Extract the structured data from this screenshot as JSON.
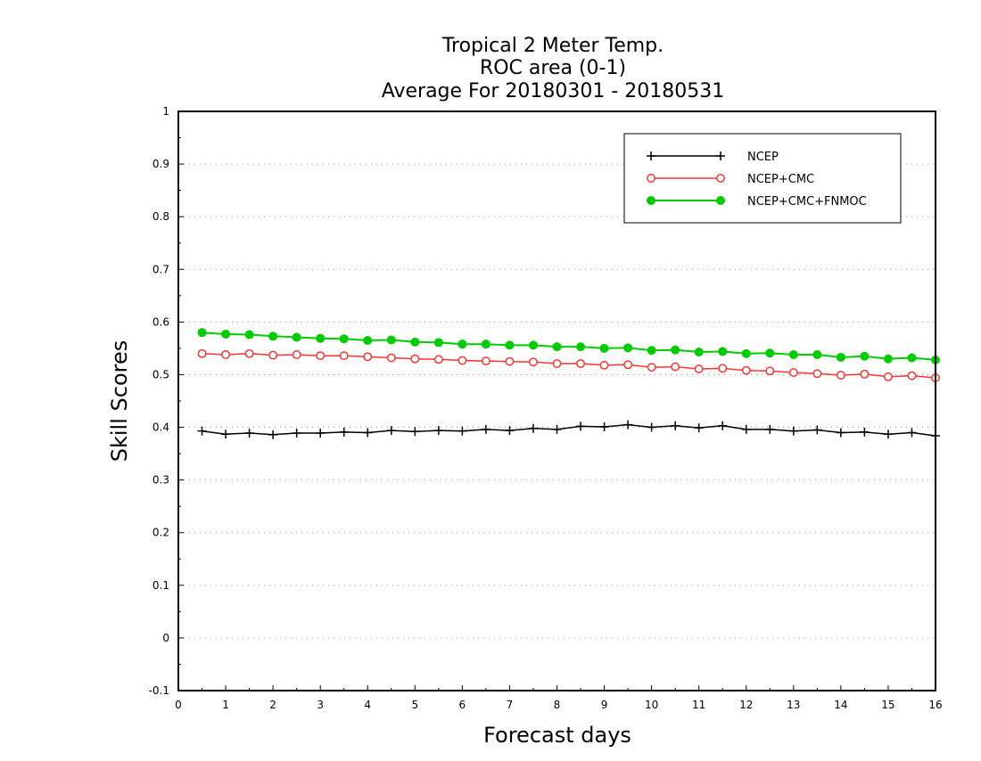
{
  "chart_data": {
    "type": "line",
    "title_lines": [
      "Tropical 2 Meter Temp.",
      "ROC area (0-1)",
      "Average For 20180301 - 20180531"
    ],
    "xlabel": "Forecast days",
    "ylabel": "Skill Scores",
    "xlim": [
      0,
      16
    ],
    "ylim": [
      -0.1,
      1
    ],
    "x_ticks": [
      0,
      1,
      2,
      3,
      4,
      5,
      6,
      7,
      8,
      9,
      10,
      11,
      12,
      13,
      14,
      15,
      16
    ],
    "x_tick_labels": [
      "0",
      "1",
      "2",
      "3",
      "4",
      "5",
      "6",
      "7",
      "8",
      "9",
      "10",
      "11",
      "12",
      "13",
      "14",
      "15",
      "16"
    ],
    "y_ticks": [
      -0.1,
      0,
      0.1,
      0.2,
      0.3,
      0.4,
      0.5,
      0.6,
      0.7,
      0.8,
      0.9,
      1
    ],
    "y_tick_labels": [
      "-0.1",
      "0",
      "0.1",
      "0.2",
      "0.3",
      "0.4",
      "0.5",
      "0.6",
      "0.7",
      "0.8",
      "0.9",
      "1"
    ],
    "grid": "horizontal dotted",
    "legend_position": "top-right",
    "x": [
      0.5,
      1,
      1.5,
      2,
      2.5,
      3,
      3.5,
      4,
      4.5,
      5,
      5.5,
      6,
      6.5,
      7,
      7.5,
      8,
      8.5,
      9,
      9.5,
      10,
      10.5,
      11,
      11.5,
      12,
      12.5,
      13,
      13.5,
      14,
      14.5,
      15,
      15.5,
      16
    ],
    "series": [
      {
        "name": "NCEP",
        "color": "#000000",
        "marker": "plus",
        "values": [
          0.393,
          0.387,
          0.389,
          0.386,
          0.389,
          0.389,
          0.391,
          0.39,
          0.394,
          0.392,
          0.394,
          0.393,
          0.396,
          0.394,
          0.398,
          0.396,
          0.402,
          0.401,
          0.405,
          0.4,
          0.403,
          0.399,
          0.403,
          0.396,
          0.396,
          0.393,
          0.395,
          0.39,
          0.391,
          0.387,
          0.39,
          0.384
        ]
      },
      {
        "name": "NCEP+CMC",
        "color": "#ff3333",
        "marker": "open-circle",
        "values": [
          0.54,
          0.538,
          0.54,
          0.537,
          0.538,
          0.536,
          0.536,
          0.534,
          0.532,
          0.53,
          0.529,
          0.527,
          0.526,
          0.525,
          0.524,
          0.521,
          0.521,
          0.518,
          0.519,
          0.514,
          0.515,
          0.511,
          0.512,
          0.508,
          0.507,
          0.504,
          0.502,
          0.499,
          0.501,
          0.496,
          0.498,
          0.494
        ]
      },
      {
        "name": "NCEP+CMC+FNMOC",
        "color": "#00cc00",
        "marker": "filled-circle",
        "values": [
          0.58,
          0.577,
          0.576,
          0.573,
          0.571,
          0.569,
          0.568,
          0.565,
          0.566,
          0.562,
          0.561,
          0.558,
          0.558,
          0.556,
          0.556,
          0.553,
          0.553,
          0.55,
          0.551,
          0.546,
          0.547,
          0.543,
          0.544,
          0.54,
          0.541,
          0.538,
          0.538,
          0.533,
          0.535,
          0.53,
          0.532,
          0.528
        ]
      }
    ]
  }
}
